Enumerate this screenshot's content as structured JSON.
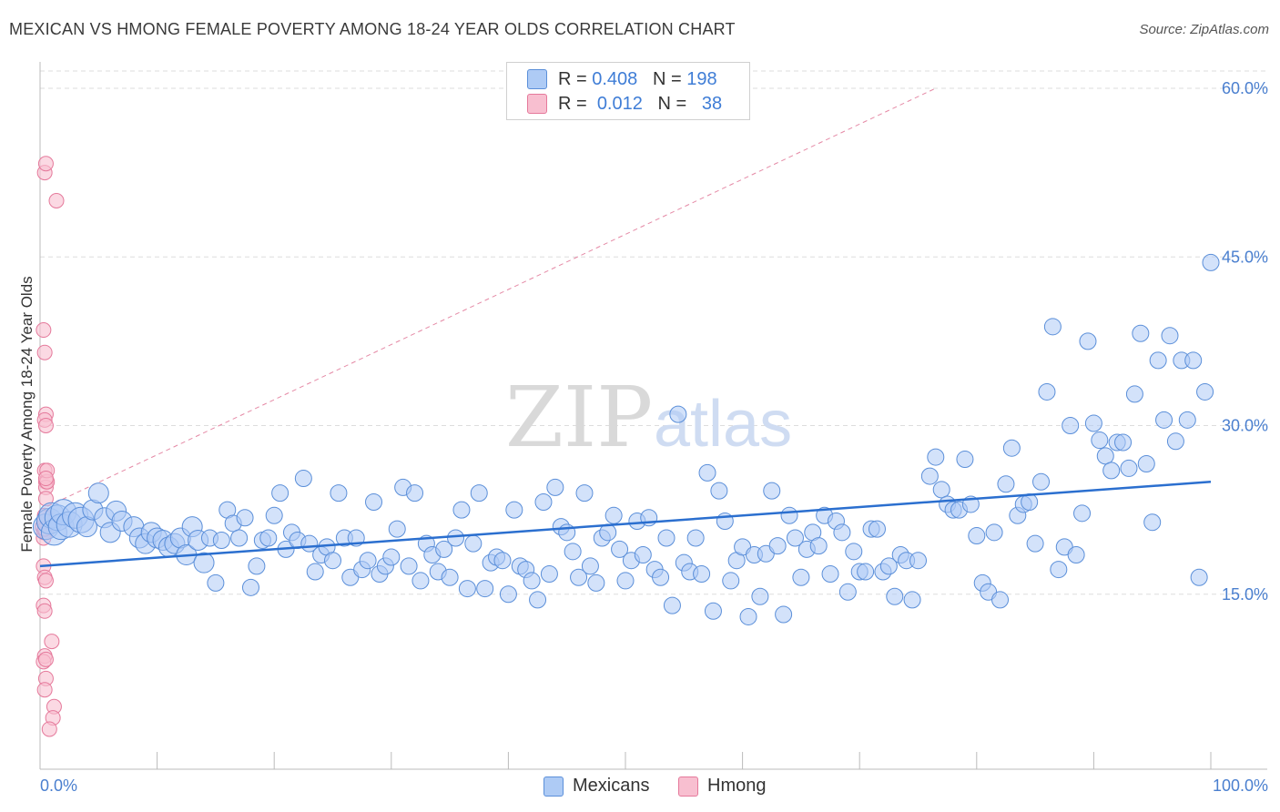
{
  "title": "MEXICAN VS HMONG FEMALE POVERTY AMONG 18-24 YEAR OLDS CORRELATION CHART",
  "source": "Source: ZipAtlas.com",
  "watermark": {
    "zip": "ZIP",
    "atlas": "atlas"
  },
  "legend": {
    "rows": [
      {
        "r_label": "R =",
        "r_value": "0.408",
        "n_label": "N =",
        "n_value": "198",
        "color": "#aecbf5"
      },
      {
        "r_label": "R =",
        "r_value": "0.012",
        "n_label": "N =",
        "n_value": "38",
        "color": "#f8bfd0"
      }
    ]
  },
  "bottom_legend": {
    "mexicans": "Mexicans",
    "hmong": "Hmong"
  },
  "colors": {
    "mexicans_fill": "#aecbf5",
    "mexicans_stroke": "#5b8fd9",
    "hmong_fill": "#f8bfd0",
    "hmong_stroke": "#e5799b",
    "trend": "#2b6fcf",
    "diag": "#e58aa6",
    "grid": "#dddddd"
  },
  "chart_data": {
    "type": "scatter",
    "title": "MEXICAN VS HMONG FEMALE POVERTY AMONG 18-24 YEAR OLDS CORRELATION CHART",
    "xlabel": "",
    "ylabel": "Female Poverty Among 18-24 Year Olds",
    "xlim": [
      0,
      100
    ],
    "ylim": [
      0,
      60
    ],
    "x_tick_labels": [
      "0.0%",
      "100.0%"
    ],
    "y_ticks": [
      15,
      30,
      45,
      60
    ],
    "y_tick_labels": [
      "15.0%",
      "30.0%",
      "45.0%",
      "60.0%"
    ],
    "grid": true,
    "legend_position": "top-center",
    "series": [
      {
        "name": "Mexicans",
        "trend": {
          "x": [
            0,
            100
          ],
          "y": [
            17.5,
            25.0
          ]
        },
        "points": [
          [
            0.5,
            21
          ],
          [
            0.8,
            21.5
          ],
          [
            1,
            22
          ],
          [
            1.2,
            20.5
          ],
          [
            1.5,
            21.8
          ],
          [
            1.8,
            21
          ],
          [
            2,
            22.3
          ],
          [
            2.5,
            21.2
          ],
          [
            3,
            22
          ],
          [
            3.5,
            21.6
          ],
          [
            4,
            21
          ],
          [
            4.5,
            22.5
          ],
          [
            5,
            24
          ],
          [
            5.5,
            21.8
          ],
          [
            6,
            20.5
          ],
          [
            6.5,
            22.4
          ],
          [
            7,
            21.5
          ],
          [
            8,
            21
          ],
          [
            8.5,
            20
          ],
          [
            9,
            19.5
          ],
          [
            9.5,
            20.5
          ],
          [
            10,
            20
          ],
          [
            10.5,
            19.8
          ],
          [
            11,
            19.2
          ],
          [
            11.5,
            19.5
          ],
          [
            12,
            20
          ],
          [
            12.5,
            18.5
          ],
          [
            13,
            21
          ],
          [
            13.5,
            19.8
          ],
          [
            14,
            17.8
          ],
          [
            14.5,
            20
          ],
          [
            15,
            16
          ],
          [
            15.5,
            19.8
          ],
          [
            16,
            22.5
          ],
          [
            16.5,
            21.3
          ],
          [
            17,
            20
          ],
          [
            17.5,
            21.8
          ],
          [
            18,
            15.6
          ],
          [
            18.5,
            17.5
          ],
          [
            19,
            19.8
          ],
          [
            19.5,
            20
          ],
          [
            20,
            22
          ],
          [
            20.5,
            24
          ],
          [
            21,
            19
          ],
          [
            21.5,
            20.5
          ],
          [
            22,
            19.8
          ],
          [
            22.5,
            25.3
          ],
          [
            23,
            19.5
          ],
          [
            23.5,
            17
          ],
          [
            24,
            18.5
          ],
          [
            24.5,
            19.2
          ],
          [
            25,
            18
          ],
          [
            25.5,
            24
          ],
          [
            26,
            20
          ],
          [
            26.5,
            16.5
          ],
          [
            27,
            20
          ],
          [
            27.5,
            17.2
          ],
          [
            28,
            18
          ],
          [
            28.5,
            23.2
          ],
          [
            29,
            16.8
          ],
          [
            29.5,
            17.5
          ],
          [
            30,
            18.3
          ],
          [
            30.5,
            20.8
          ],
          [
            31,
            24.5
          ],
          [
            31.5,
            17.5
          ],
          [
            32,
            24
          ],
          [
            32.5,
            16.2
          ],
          [
            33,
            19.5
          ],
          [
            33.5,
            18.5
          ],
          [
            34,
            17
          ],
          [
            34.5,
            19
          ],
          [
            35,
            16.5
          ],
          [
            35.5,
            20
          ],
          [
            36,
            22.5
          ],
          [
            36.5,
            15.5
          ],
          [
            37,
            19.5
          ],
          [
            37.5,
            24
          ],
          [
            38,
            15.5
          ],
          [
            38.5,
            17.8
          ],
          [
            39,
            18.3
          ],
          [
            39.5,
            18
          ],
          [
            40,
            15
          ],
          [
            40.5,
            22.5
          ],
          [
            41,
            17.5
          ],
          [
            41.5,
            17.2
          ],
          [
            42,
            16.2
          ],
          [
            42.5,
            14.5
          ],
          [
            43,
            23.2
          ],
          [
            43.5,
            16.8
          ],
          [
            44,
            24.5
          ],
          [
            44.5,
            21
          ],
          [
            45,
            20.5
          ],
          [
            45.5,
            18.8
          ],
          [
            46,
            16.5
          ],
          [
            46.5,
            24
          ],
          [
            47,
            17.5
          ],
          [
            47.5,
            16
          ],
          [
            48,
            20
          ],
          [
            48.5,
            20.5
          ],
          [
            49,
            22
          ],
          [
            49.5,
            19
          ],
          [
            50,
            16.2
          ],
          [
            50.5,
            18
          ],
          [
            51,
            21.5
          ],
          [
            51.5,
            18.5
          ],
          [
            52,
            21.8
          ],
          [
            52.5,
            17.2
          ],
          [
            53,
            16.5
          ],
          [
            53.5,
            20
          ],
          [
            54,
            14
          ],
          [
            54.5,
            31
          ],
          [
            55,
            17.8
          ],
          [
            55.5,
            17
          ],
          [
            56,
            20
          ],
          [
            56.5,
            16.8
          ],
          [
            57,
            25.8
          ],
          [
            57.5,
            13.5
          ],
          [
            58,
            24.2
          ],
          [
            58.5,
            21.5
          ],
          [
            59,
            16.2
          ],
          [
            59.5,
            18
          ],
          [
            60,
            19.2
          ],
          [
            60.5,
            13
          ],
          [
            61,
            18.5
          ],
          [
            61.5,
            14.8
          ],
          [
            62,
            18.6
          ],
          [
            62.5,
            24.2
          ],
          [
            63,
            19.3
          ],
          [
            63.5,
            13.2
          ],
          [
            64,
            22
          ],
          [
            64.5,
            20
          ],
          [
            65,
            16.5
          ],
          [
            65.5,
            19
          ],
          [
            66,
            20.5
          ],
          [
            66.5,
            19.3
          ],
          [
            67,
            22
          ],
          [
            67.5,
            16.8
          ],
          [
            68,
            21.5
          ],
          [
            68.5,
            20.5
          ],
          [
            69,
            15.2
          ],
          [
            69.5,
            18.8
          ],
          [
            70,
            17
          ],
          [
            70.5,
            17
          ],
          [
            71,
            20.8
          ],
          [
            71.5,
            20.8
          ],
          [
            72,
            17
          ],
          [
            72.5,
            17.5
          ],
          [
            73,
            14.8
          ],
          [
            73.5,
            18.5
          ],
          [
            74,
            18
          ],
          [
            74.5,
            14.5
          ],
          [
            75,
            18
          ],
          [
            76,
            25.5
          ],
          [
            76.5,
            27.2
          ],
          [
            77,
            24.3
          ],
          [
            77.5,
            23
          ],
          [
            78,
            22.5
          ],
          [
            78.5,
            22.5
          ],
          [
            79,
            27
          ],
          [
            79.5,
            23
          ],
          [
            80,
            20.2
          ],
          [
            80.5,
            16
          ],
          [
            81,
            15.2
          ],
          [
            81.5,
            20.5
          ],
          [
            82,
            14.5
          ],
          [
            82.5,
            24.8
          ],
          [
            83,
            28
          ],
          [
            83.5,
            22
          ],
          [
            84,
            23
          ],
          [
            84.5,
            23.2
          ],
          [
            85,
            19.5
          ],
          [
            85.5,
            25
          ],
          [
            86,
            33
          ],
          [
            86.5,
            38.8
          ],
          [
            87,
            17.2
          ],
          [
            87.5,
            19.2
          ],
          [
            88,
            30
          ],
          [
            88.5,
            18.5
          ],
          [
            89,
            22.2
          ],
          [
            89.5,
            37.5
          ],
          [
            90,
            30.2
          ],
          [
            90.5,
            28.7
          ],
          [
            91,
            27.3
          ],
          [
            91.5,
            26
          ],
          [
            92,
            28.5
          ],
          [
            92.5,
            28.5
          ],
          [
            93,
            26.2
          ],
          [
            93.5,
            32.8
          ],
          [
            94,
            38.2
          ],
          [
            94.5,
            26.6
          ],
          [
            95,
            21.4
          ],
          [
            95.5,
            35.8
          ],
          [
            96,
            30.5
          ],
          [
            96.5,
            38
          ],
          [
            97,
            28.6
          ],
          [
            97.5,
            35.8
          ],
          [
            98,
            30.5
          ],
          [
            98.5,
            35.8
          ],
          [
            99,
            16.5
          ],
          [
            99.5,
            33
          ],
          [
            100,
            44.5
          ]
        ]
      },
      {
        "name": "Hmong",
        "points": [
          [
            0.2,
            21
          ],
          [
            0.3,
            20.5
          ],
          [
            0.3,
            20
          ],
          [
            0.4,
            22
          ],
          [
            0.4,
            21.5
          ],
          [
            0.5,
            25
          ],
          [
            0.5,
            24.5
          ],
          [
            0.4,
            26
          ],
          [
            0.6,
            25
          ],
          [
            0.5,
            23.5
          ],
          [
            0.3,
            38.5
          ],
          [
            0.4,
            36.5
          ],
          [
            0.5,
            31
          ],
          [
            0.4,
            30.5
          ],
          [
            0.5,
            30
          ],
          [
            0.4,
            52.5
          ],
          [
            0.5,
            53.3
          ],
          [
            1.4,
            50
          ],
          [
            0.3,
            17.5
          ],
          [
            0.4,
            16.5
          ],
          [
            0.5,
            16.2
          ],
          [
            0.3,
            14
          ],
          [
            0.4,
            13.5
          ],
          [
            0.4,
            9.5
          ],
          [
            0.3,
            9
          ],
          [
            0.5,
            9.2
          ],
          [
            0.5,
            7.5
          ],
          [
            0.4,
            6.5
          ],
          [
            1,
            10.8
          ],
          [
            1.2,
            5
          ],
          [
            1.1,
            4
          ],
          [
            0.8,
            3
          ],
          [
            0.5,
            20.5
          ],
          [
            0.4,
            21.8
          ],
          [
            0.4,
            21.5
          ],
          [
            0.4,
            20.8
          ],
          [
            0.6,
            26
          ],
          [
            0.5,
            25.3
          ]
        ]
      }
    ]
  }
}
